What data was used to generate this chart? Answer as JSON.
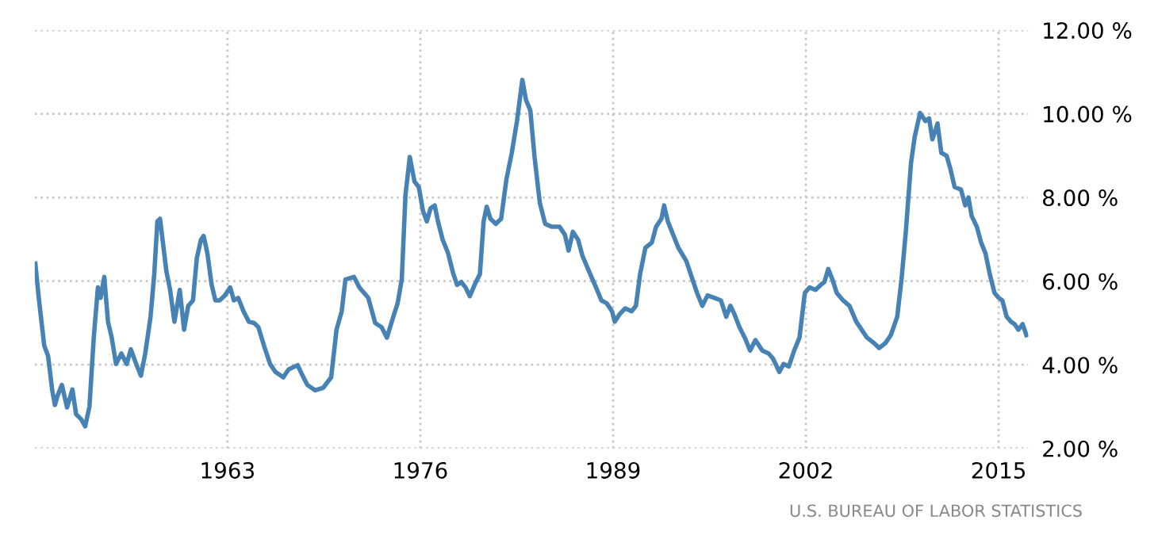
{
  "chart_data": {
    "type": "line",
    "x": [
      1950.04,
      1950.29,
      1950.64,
      1950.9,
      1951.18,
      1951.36,
      1951.54,
      1951.83,
      1952.18,
      1952.54,
      1952.79,
      1953.15,
      1953.4,
      1953.69,
      1953.98,
      1954.26,
      1954.44,
      1954.69,
      1954.94,
      1955.19,
      1955.48,
      1955.84,
      1956.2,
      1956.48,
      1956.84,
      1957.16,
      1957.45,
      1957.81,
      1958.06,
      1958.27,
      1958.45,
      1958.88,
      1959.13,
      1959.42,
      1959.78,
      1960.07,
      1960.35,
      1960.67,
      1960.93,
      1961.21,
      1961.39,
      1961.64,
      1961.93,
      1962.18,
      1962.47,
      1962.82,
      1963.18,
      1963.43,
      1963.72,
      1964.08,
      1964.44,
      1964.79,
      1965.08,
      1965.51,
      1965.87,
      1966.23,
      1966.76,
      1967.12,
      1967.73,
      1968.02,
      1968.38,
      1968.91,
      1969.45,
      1969.99,
      1970.35,
      1970.7,
      1970.95,
      1971.53,
      1971.89,
      1972.49,
      1972.96,
      1973.39,
      1973.75,
      1974.18,
      1974.47,
      1974.75,
      1975.0,
      1975.29,
      1975.61,
      1975.9,
      1976.18,
      1976.44,
      1976.69,
      1976.97,
      1977.19,
      1977.51,
      1977.87,
      1978.23,
      1978.48,
      1978.76,
      1979.05,
      1979.34,
      1979.66,
      1980.02,
      1980.27,
      1980.48,
      1980.73,
      1981.09,
      1981.45,
      1981.81,
      1982.17,
      1982.52,
      1982.88,
      1983.13,
      1983.42,
      1983.71,
      1984.06,
      1984.42,
      1984.85,
      1985.39,
      1985.75,
      1986.0,
      1986.29,
      1986.64,
      1986.93,
      1987.31,
      1987.85,
      1988.21,
      1988.57,
      1988.93,
      1989.11,
      1989.46,
      1989.82,
      1990.25,
      1990.54,
      1990.82,
      1991.18,
      1991.61,
      1991.9,
      1992.26,
      1992.44,
      1992.69,
      1993.05,
      1993.4,
      1993.94,
      1994.3,
      1994.66,
      1995.02,
      1995.37,
      1995.84,
      1996.27,
      1996.63,
      1996.91,
      1997.17,
      1997.52,
      1997.88,
      1998.24,
      1998.6,
      1999.06,
      1999.49,
      1999.78,
      2000.21,
      2000.5,
      2000.85,
      2001.21,
      2001.57,
      2001.93,
      2002.25,
      2002.65,
      2003.0,
      2003.25,
      2003.51,
      2003.79,
      2004.08,
      2004.51,
      2004.94,
      2005.4,
      2005.76,
      2006.12,
      2006.59,
      2006.94,
      2007.37,
      2007.73,
      2008.16,
      2008.45,
      2008.74,
      2009.09,
      2009.34,
      2009.7,
      2010.06,
      2010.31,
      2010.53,
      2010.88,
      2011.13,
      2011.49,
      2011.74,
      2012.03,
      2012.46,
      2012.75,
      2012.96,
      2013.18,
      2013.53,
      2013.82,
      2014.11,
      2014.4,
      2014.72,
      2015.0,
      2015.25,
      2015.54,
      2015.83,
      2016.08,
      2016.33,
      2016.62,
      2016.87
    ],
    "series": [
      {
        "color": "#4682b4",
        "values": [
          6.42,
          5.54,
          4.46,
          4.21,
          3.39,
          3.04,
          3.26,
          3.52,
          2.98,
          3.41,
          2.82,
          2.69,
          2.53,
          3.0,
          4.65,
          5.85,
          5.6,
          6.1,
          5.03,
          4.65,
          4.02,
          4.27,
          4.02,
          4.37,
          4.02,
          3.74,
          4.27,
          5.15,
          6.17,
          7.43,
          7.49,
          6.23,
          5.79,
          5.03,
          5.79,
          4.84,
          5.41,
          5.54,
          6.55,
          6.99,
          7.08,
          6.67,
          5.91,
          5.54,
          5.54,
          5.66,
          5.85,
          5.54,
          5.6,
          5.28,
          5.03,
          5.0,
          4.9,
          4.4,
          4.02,
          3.83,
          3.7,
          3.89,
          3.99,
          3.77,
          3.52,
          3.39,
          3.45,
          3.7,
          4.84,
          5.28,
          6.04,
          6.1,
          5.85,
          5.6,
          5.0,
          4.9,
          4.65,
          5.15,
          5.47,
          6.04,
          8.06,
          8.97,
          8.38,
          8.25,
          7.68,
          7.43,
          7.74,
          7.81,
          7.43,
          6.99,
          6.67,
          6.17,
          5.91,
          5.98,
          5.85,
          5.64,
          5.91,
          6.17,
          7.43,
          7.78,
          7.49,
          7.37,
          7.49,
          8.44,
          9.07,
          9.83,
          10.81,
          10.33,
          10.08,
          8.95,
          7.87,
          7.37,
          7.3,
          7.3,
          7.11,
          6.73,
          7.18,
          6.99,
          6.61,
          6.29,
          5.85,
          5.54,
          5.47,
          5.28,
          5.03,
          5.22,
          5.35,
          5.28,
          5.41,
          6.17,
          6.8,
          6.92,
          7.3,
          7.49,
          7.81,
          7.43,
          7.11,
          6.8,
          6.48,
          6.1,
          5.72,
          5.41,
          5.66,
          5.6,
          5.54,
          5.15,
          5.41,
          5.22,
          4.9,
          4.65,
          4.34,
          4.59,
          4.34,
          4.27,
          4.15,
          3.83,
          4.02,
          3.96,
          4.34,
          4.65,
          5.72,
          5.85,
          5.79,
          5.91,
          5.98,
          6.29,
          6.04,
          5.72,
          5.54,
          5.41,
          5.03,
          4.84,
          4.65,
          4.52,
          4.4,
          4.52,
          4.71,
          5.15,
          6.04,
          7.18,
          8.82,
          9.45,
          10.02,
          9.83,
          9.89,
          9.39,
          9.77,
          9.07,
          9.0,
          8.69,
          8.25,
          8.19,
          7.81,
          8.0,
          7.56,
          7.3,
          6.92,
          6.67,
          6.17,
          5.72,
          5.6,
          5.54,
          5.15,
          5.03,
          4.97,
          4.84,
          4.97,
          4.71
        ]
      }
    ],
    "xlim": [
      1950,
      2017
    ],
    "xticks": [
      1963,
      1976,
      1989,
      2002,
      2015
    ],
    "ylim": [
      2,
      12
    ],
    "yticks": [
      {
        "value": 2,
        "label": "2.00 %"
      },
      {
        "value": 4,
        "label": "4.00 %"
      },
      {
        "value": 6,
        "label": "6.00 %"
      },
      {
        "value": 8,
        "label": "8.00 %"
      },
      {
        "value": 10,
        "label": "10.00 %"
      },
      {
        "value": 12,
        "label": "12.00 %"
      }
    ],
    "grid": true,
    "line_style": "solid",
    "marker": "none",
    "annotations": [
      "U.S. BUREAU OF LABOR STATISTICS"
    ]
  }
}
